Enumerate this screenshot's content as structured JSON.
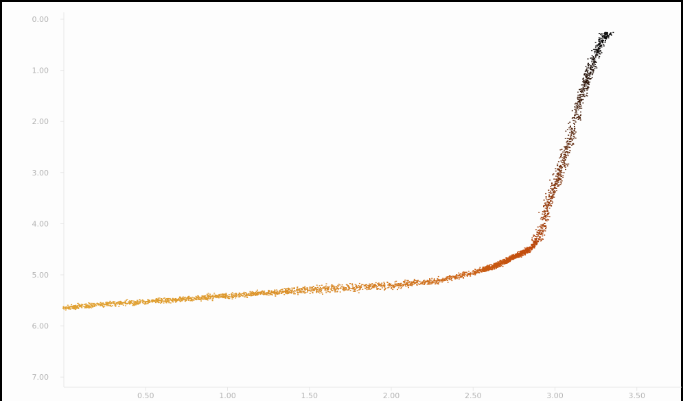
{
  "chart_data": {
    "type": "scatter",
    "title": "",
    "xlabel": "",
    "ylabel": "",
    "xlim": [
      0,
      3.75
    ],
    "ylim": [
      7.2,
      0
    ],
    "y_inverted": true,
    "grid": false,
    "legend": "none",
    "color_scale": {
      "low": "#e0a030",
      "mid": "#c24a0c",
      "high": "#0a0a0a",
      "encodes": "x"
    },
    "x_ticks": [
      "0.50",
      "1.00",
      "1.50",
      "2.00",
      "2.50",
      "3.00",
      "3.50"
    ],
    "y_ticks": [
      "0.00",
      "1.00",
      "2.00",
      "3.00",
      "4.00",
      "5.00",
      "6.00",
      "7.00"
    ],
    "trend": {
      "x": [
        0.0,
        0.25,
        0.5,
        0.75,
        1.0,
        1.25,
        1.5,
        1.75,
        2.0,
        2.25,
        2.5,
        2.6,
        2.7,
        2.8,
        2.85,
        2.9,
        2.95,
        3.0,
        3.05,
        3.1,
        3.15,
        3.2,
        3.25,
        3.3
      ],
      "y": [
        5.63,
        5.57,
        5.52,
        5.46,
        5.4,
        5.34,
        5.28,
        5.25,
        5.2,
        5.12,
        4.95,
        4.85,
        4.72,
        4.55,
        4.48,
        4.25,
        3.65,
        3.25,
        2.75,
        2.2,
        1.6,
        1.1,
        0.65,
        0.3
      ]
    }
  }
}
